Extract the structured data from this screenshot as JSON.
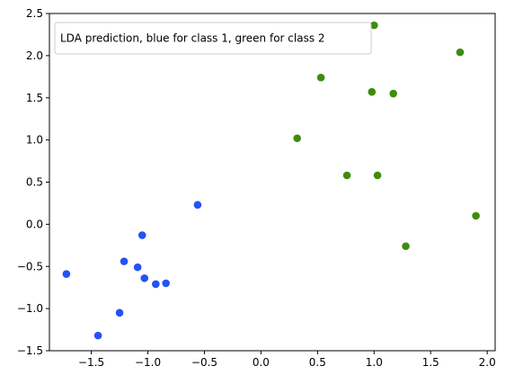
{
  "chart_data": {
    "type": "scatter",
    "title": "",
    "xlabel": "",
    "ylabel": "",
    "xlim": [
      -1.87,
      2.07
    ],
    "ylim": [
      -1.5,
      2.5
    ],
    "xticks": [
      -1.5,
      -1.0,
      -0.5,
      0.0,
      0.5,
      1.0,
      1.5,
      2.0
    ],
    "xtick_labels": [
      "−1.5",
      "−1.0",
      "−0.5",
      "0.0",
      "0.5",
      "1.0",
      "1.5",
      "2.0"
    ],
    "yticks": [
      -1.5,
      -1.0,
      -0.5,
      0.0,
      0.5,
      1.0,
      1.5,
      2.0,
      2.5
    ],
    "ytick_labels": [
      "−1.5",
      "−1.0",
      "−0.5",
      "0.0",
      "0.5",
      "1.0",
      "1.5",
      "2.0",
      "2.5"
    ],
    "grid": false,
    "legend": {
      "text": "LDA prediction, blue for class 1, green for class 2",
      "position": "top-left"
    },
    "series": [
      {
        "name": "class 1",
        "color": "#2452f5",
        "points": [
          [
            -0.56,
            0.23
          ],
          [
            -1.05,
            -0.13
          ],
          [
            -1.21,
            -0.44
          ],
          [
            -1.09,
            -0.51
          ],
          [
            -1.03,
            -0.64
          ],
          [
            -0.93,
            -0.71
          ],
          [
            -0.84,
            -0.7
          ],
          [
            -1.72,
            -0.59
          ],
          [
            -1.25,
            -1.05
          ],
          [
            -1.44,
            -1.32
          ]
        ]
      },
      {
        "name": "class 2",
        "color": "#3c8d0d",
        "points": [
          [
            1.0,
            2.36
          ],
          [
            1.76,
            2.04
          ],
          [
            0.53,
            1.74
          ],
          [
            0.98,
            1.57
          ],
          [
            1.17,
            1.55
          ],
          [
            0.32,
            1.02
          ],
          [
            0.76,
            0.58
          ],
          [
            1.03,
            0.58
          ],
          [
            1.9,
            0.1
          ],
          [
            1.28,
            -0.26
          ]
        ]
      }
    ]
  }
}
